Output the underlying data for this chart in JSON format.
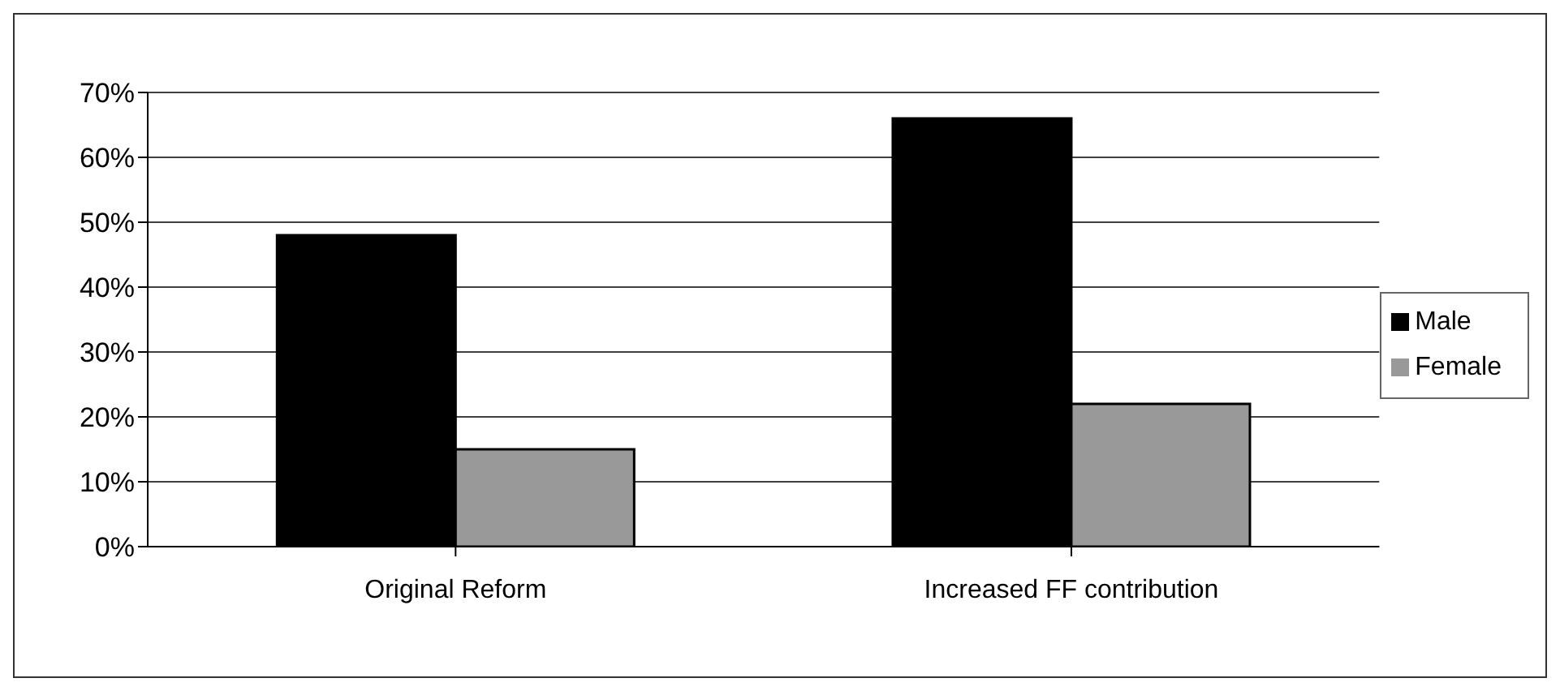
{
  "chart_data": {
    "type": "bar",
    "categories": [
      "Original Reform",
      "Increased FF contribution"
    ],
    "series": [
      {
        "name": "Male",
        "color": "#000000",
        "values": [
          48,
          66
        ]
      },
      {
        "name": "Female",
        "color": "#999999",
        "values": [
          15,
          22
        ]
      }
    ],
    "ylim": [
      0,
      70
    ],
    "yticks": [
      {
        "value": 0,
        "label": "0%"
      },
      {
        "value": 10,
        "label": "10%"
      },
      {
        "value": 20,
        "label": "20%"
      },
      {
        "value": 30,
        "label": "30%"
      },
      {
        "value": 40,
        "label": "40%"
      },
      {
        "value": 50,
        "label": "50%"
      },
      {
        "value": 60,
        "label": "60%"
      },
      {
        "value": 70,
        "label": "70%"
      }
    ],
    "grid": "y",
    "legend": "right"
  }
}
